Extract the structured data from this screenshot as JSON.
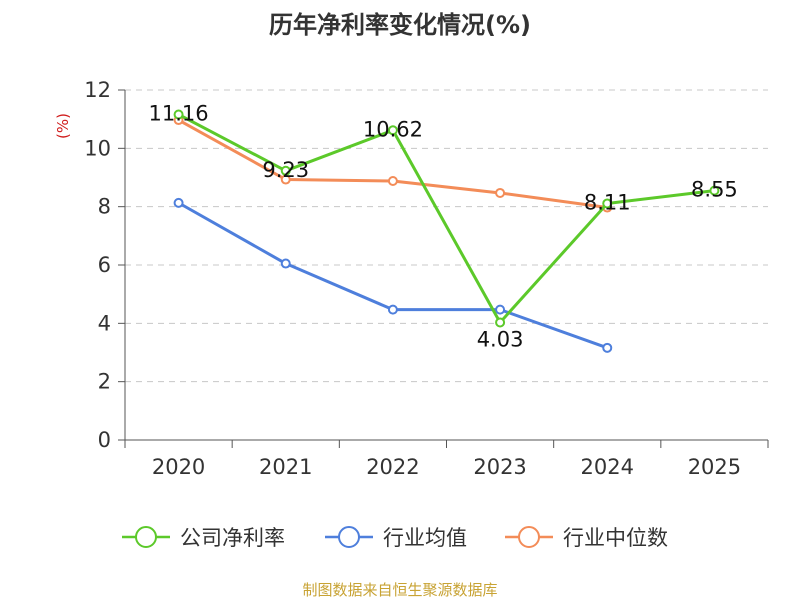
{
  "chart_data": {
    "type": "line",
    "title": "历年净利率变化情况(%)",
    "unit": "(%)",
    "x": [
      "2020",
      "2021",
      "2022",
      "2023",
      "2024",
      "2025"
    ],
    "ylim": [
      0,
      12
    ],
    "yticks": [
      0,
      2,
      4,
      6,
      8,
      10,
      12
    ],
    "grid": true,
    "legend_position": "bottom",
    "series": [
      {
        "name": "公司净利率",
        "color": "#5cc92a",
        "values": [
          11.16,
          9.23,
          10.62,
          4.03,
          8.11,
          8.55
        ],
        "labels": [
          "11.16",
          "9.23",
          "10.62",
          "4.03",
          "8.11",
          "8.55"
        ]
      },
      {
        "name": "行业均值",
        "color": "#4e7fdc",
        "values": [
          8.13,
          6.05,
          4.47,
          4.47,
          3.16,
          null
        ]
      },
      {
        "name": "行业中位数",
        "color": "#f38c58",
        "values": [
          10.97,
          8.93,
          8.88,
          8.47,
          7.97,
          null
        ]
      }
    ]
  },
  "source": "制图数据来自恒生聚源数据库"
}
